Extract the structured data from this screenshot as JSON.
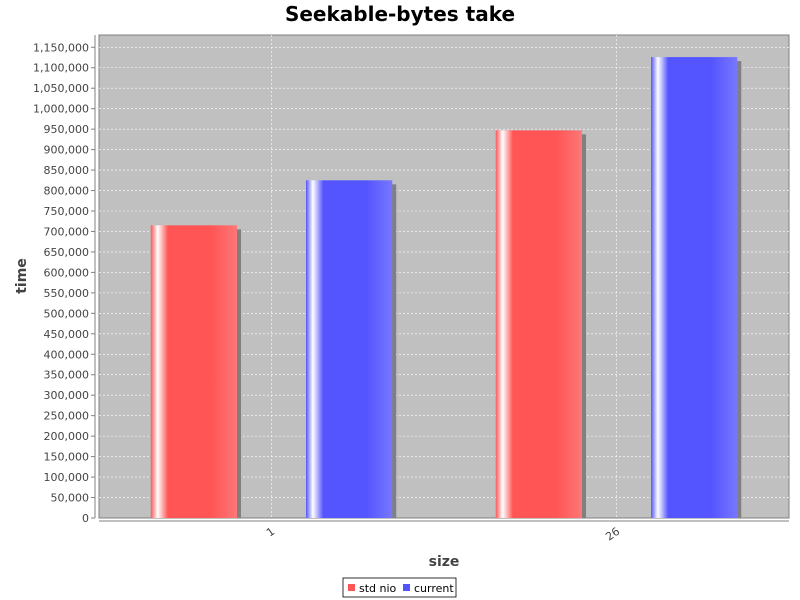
{
  "chart_data": {
    "type": "bar",
    "title": "Seekable-bytes take",
    "xlabel": "size",
    "ylabel": "time",
    "categories": [
      "1",
      "26"
    ],
    "series": [
      {
        "name": "std nio",
        "values": [
          715000,
          947000
        ],
        "color": "#ff5555"
      },
      {
        "name": "current",
        "values": [
          825000,
          1126000
        ],
        "color": "#5555ff"
      }
    ],
    "ylim": [
      0,
      1180000
    ],
    "y_tick_step": 50000,
    "grid": true,
    "legend_position": "bottom",
    "plot_background": "#c0c0c0"
  }
}
